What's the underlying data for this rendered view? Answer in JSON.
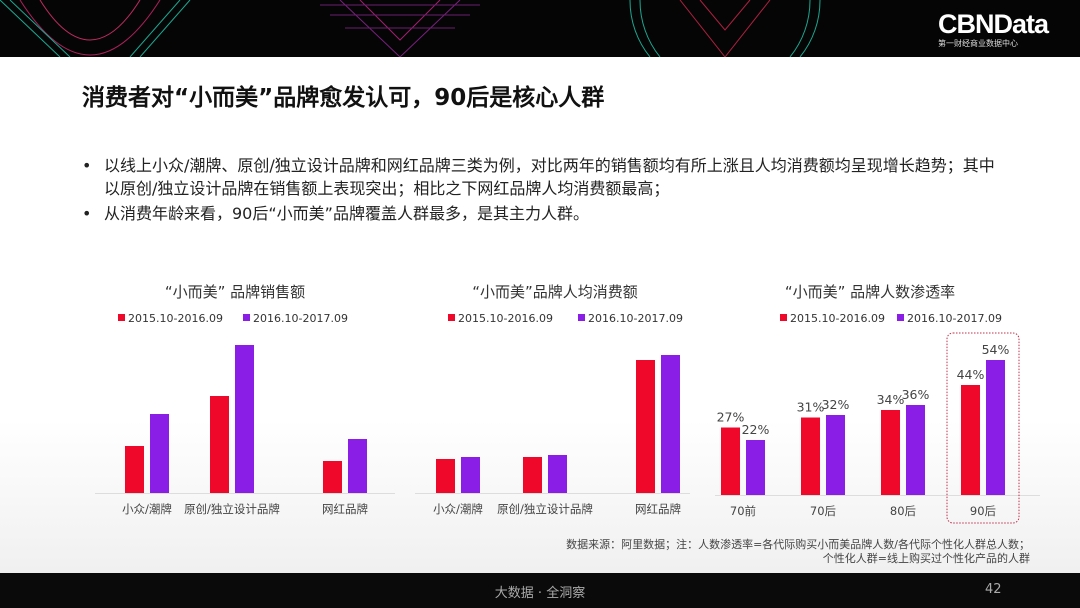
{
  "header": {
    "logo": "CBNData",
    "logo_sub": "第一财经商业数据中心"
  },
  "title": "消费者对“小而美”品牌愈发认可，90后是核心人群",
  "bullets": [
    "以线上小众/潮牌、原创/独立设计品牌和网红品牌三类为例，对比两年的销售额均有所上涨且人均消费额均呈现增长趋势；其中以原创/独立设计品牌在销售额上表现突出；相比之下网红品牌人均消费额最高；",
    "从消费年龄来看，90后“小而美”品牌覆盖人群最多，是其主力人群。"
  ],
  "colors": {
    "series1": "#f0082a",
    "series2": "#8a1ee6"
  },
  "chart_data": [
    {
      "type": "bar",
      "title": "“小而美” 品牌销售额",
      "categories": [
        "小众/潮牌",
        "原创/独立设计品牌",
        "网红品牌"
      ],
      "series": [
        {
          "name": "2015.10-2016.09",
          "values": [
            47,
            97,
            32
          ]
        },
        {
          "name": "2016.10-2017.09",
          "values": [
            79,
            148,
            54
          ]
        }
      ],
      "note": "values are relative estimates; no axis printed"
    },
    {
      "type": "bar",
      "title": "“小而美”品牌人均消费额",
      "categories": [
        "小众/潮牌",
        "原创/独立设计品牌",
        "网红品牌"
      ],
      "series": [
        {
          "name": "2015.10-2016.09",
          "values": [
            34,
            36,
            133
          ]
        },
        {
          "name": "2016.10-2017.09",
          "values": [
            36,
            38,
            138
          ]
        }
      ]
    },
    {
      "type": "bar",
      "title": "“小而美” 品牌人数渗透率",
      "categories": [
        "70前",
        "70后",
        "80后",
        "90后"
      ],
      "series": [
        {
          "name": "2015.10-2016.09",
          "values": [
            27,
            31,
            34,
            44
          ],
          "labels": [
            "27%",
            "31%",
            "34%",
            "44%"
          ]
        },
        {
          "name": "2016.10-2017.09",
          "values": [
            22,
            32,
            36,
            54
          ],
          "labels": [
            "22%",
            "32%",
            "36%",
            "54%"
          ]
        }
      ],
      "highlight": "90后"
    }
  ],
  "source": {
    "line1": "数据来源：阿里数据；注：人数渗透率=各代际购买小而美品牌人数/各代际个性化人群总人数；",
    "line2": "个性化人群=线上购买过个性化产品的人群"
  },
  "footer": {
    "slogan": "大数据 · 全洞察",
    "page": "42"
  }
}
